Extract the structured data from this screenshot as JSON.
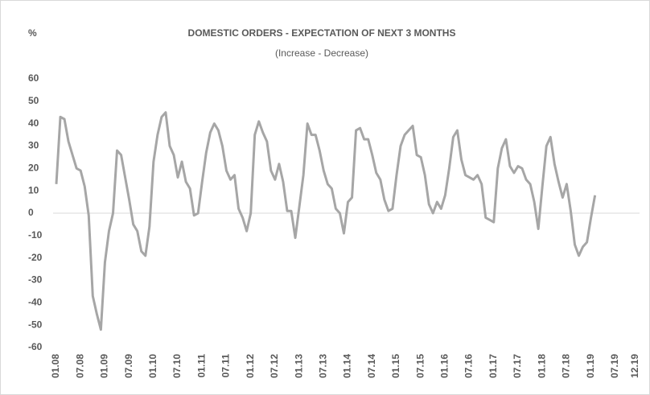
{
  "chart_data": {
    "type": "line",
    "title": "DOMESTIC ORDERS - EXPECTATION OF NEXT 3 MONTHS",
    "subtitle": "(Increase - Decrease)",
    "y_label": "%",
    "categories": [
      "01.08",
      null,
      null,
      null,
      null,
      null,
      "07.08",
      null,
      null,
      null,
      null,
      null,
      "01.09",
      null,
      null,
      null,
      null,
      null,
      "07.09",
      null,
      null,
      null,
      null,
      null,
      "01.10",
      null,
      null,
      null,
      null,
      null,
      "07.10",
      null,
      null,
      null,
      null,
      null,
      "01.11",
      null,
      null,
      null,
      null,
      null,
      "07.11",
      null,
      null,
      null,
      null,
      null,
      "01.12",
      null,
      null,
      null,
      null,
      null,
      "07.12",
      null,
      null,
      null,
      null,
      null,
      "01.13",
      null,
      null,
      null,
      null,
      null,
      "07.13",
      null,
      null,
      null,
      null,
      null,
      "01.14",
      null,
      null,
      null,
      null,
      null,
      "07.14",
      null,
      null,
      null,
      null,
      null,
      "01.15",
      null,
      null,
      null,
      null,
      null,
      "07.15",
      null,
      null,
      null,
      null,
      null,
      "01.16",
      null,
      null,
      null,
      null,
      null,
      "07.16",
      null,
      null,
      null,
      null,
      null,
      "01.17",
      null,
      null,
      null,
      null,
      null,
      "07.17",
      null,
      null,
      null,
      null,
      null,
      "01.18",
      null,
      null,
      null,
      null,
      null,
      "07.18",
      null,
      null,
      null,
      null,
      null,
      "01.19",
      null,
      null,
      null,
      null,
      null,
      "07.19",
      null,
      null,
      null,
      null,
      "12.19"
    ],
    "values": [
      13,
      43,
      42,
      32,
      26,
      20,
      19,
      12,
      -1,
      -37,
      -45,
      -52,
      -22,
      -8,
      0,
      28,
      26,
      16,
      6,
      -5,
      -8,
      -17,
      -19,
      -6,
      23,
      35,
      43,
      45,
      30,
      26,
      16,
      23,
      14,
      11,
      -1,
      0,
      14,
      27,
      36,
      40,
      37,
      30,
      19,
      15,
      17,
      2,
      -2,
      -8,
      0,
      35,
      41,
      36,
      32,
      19,
      15,
      22,
      14,
      1,
      1,
      -11,
      3,
      17,
      40,
      35,
      35,
      28,
      19,
      13,
      11,
      2,
      0,
      -9,
      5,
      7,
      37,
      38,
      33,
      33,
      26,
      18,
      15,
      6,
      1,
      2,
      17,
      30,
      35,
      37,
      39,
      26,
      25,
      17,
      4,
      0,
      5,
      2,
      8,
      20,
      34,
      37,
      24,
      17,
      16,
      15,
      17,
      13,
      -2,
      -3,
      -4,
      20,
      29,
      33,
      21,
      18,
      21,
      20,
      15,
      13,
      5,
      -7,
      12,
      30,
      34,
      22,
      14,
      7,
      13,
      1,
      -14,
      -19,
      -15,
      -13,
      -2,
      8,
      null,
      null,
      null,
      null,
      null,
      null,
      null,
      null,
      null,
      null
    ],
    "color": "#a6a6a6",
    "ylim": [
      -60,
      60
    ],
    "yticks": [
      60,
      50,
      40,
      30,
      20,
      10,
      0,
      -10,
      -20,
      -30,
      -40,
      -50,
      -60
    ]
  }
}
